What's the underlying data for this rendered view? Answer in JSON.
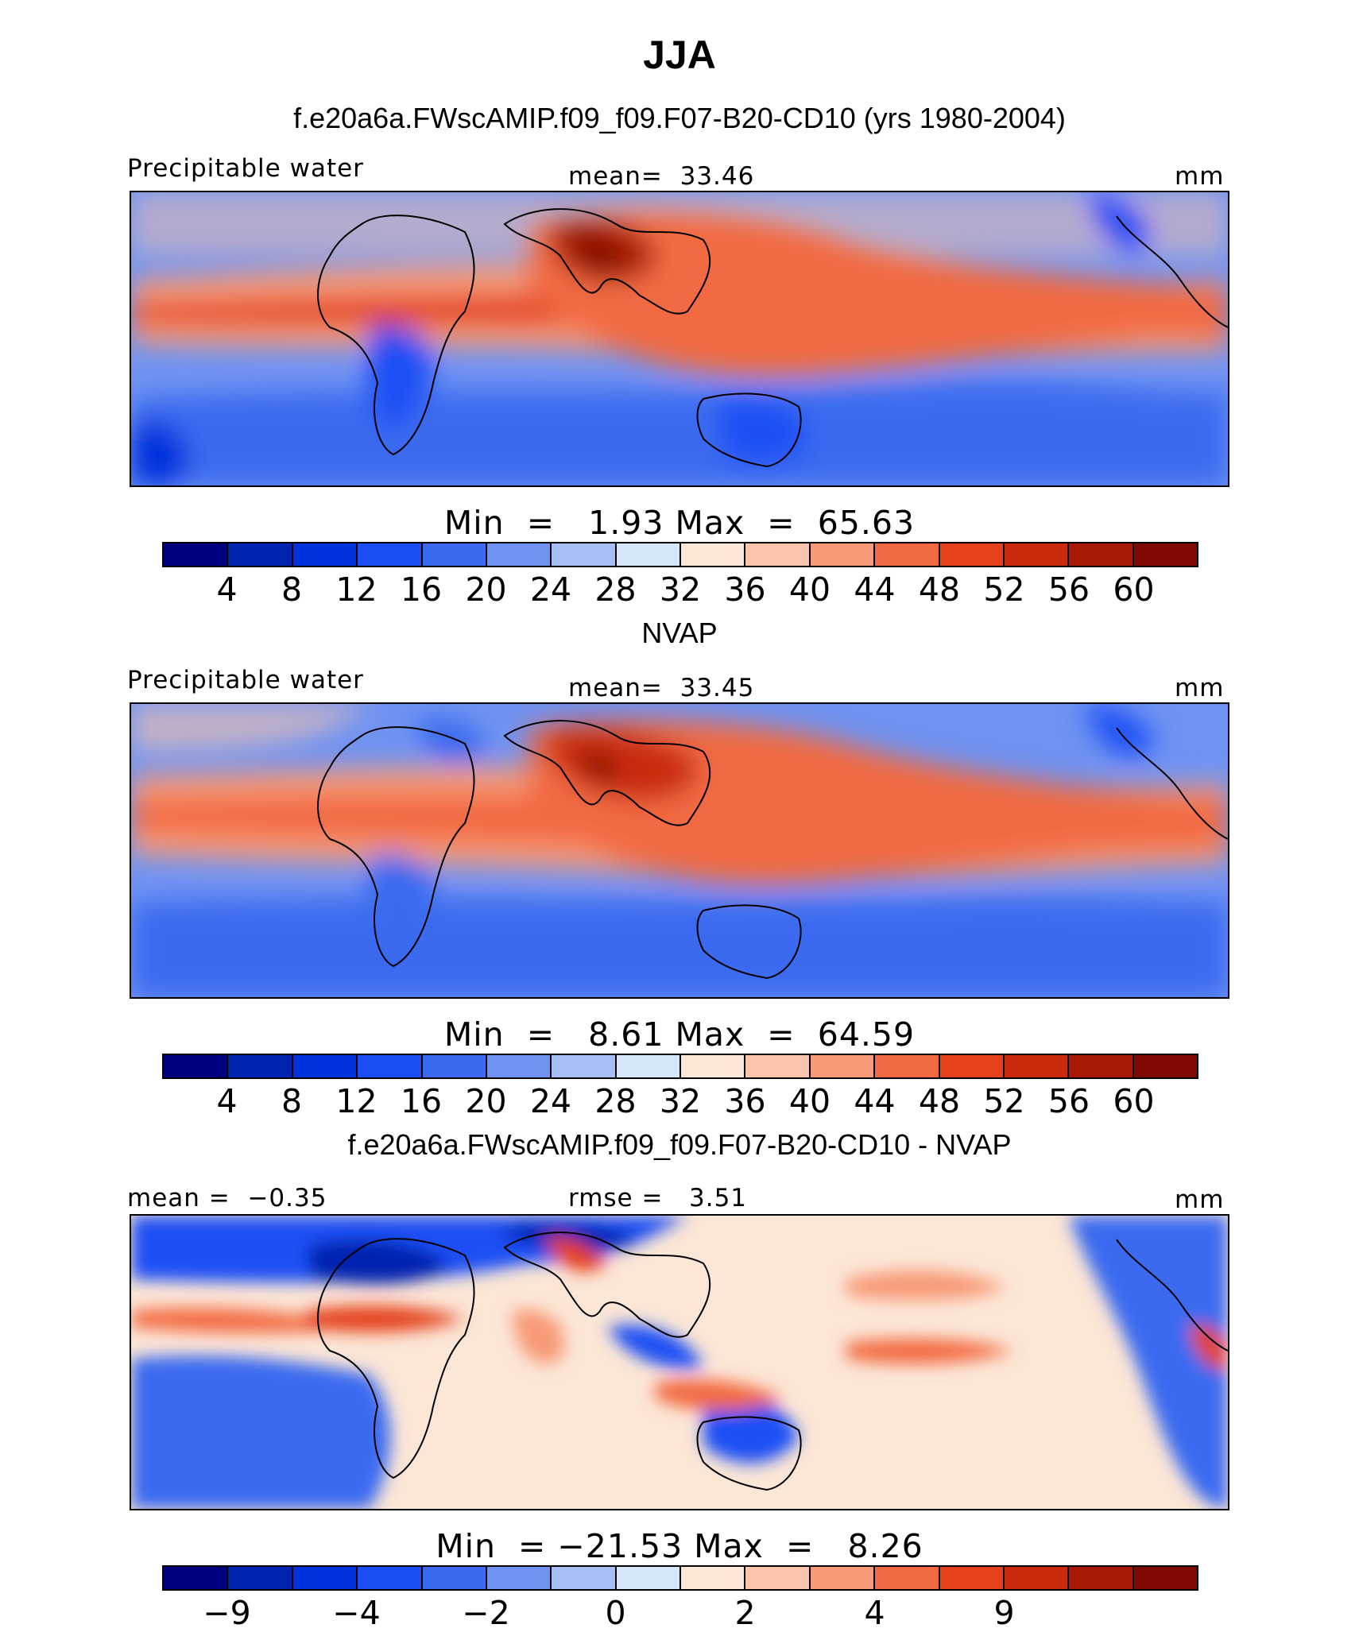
{
  "title": "JJA",
  "chart_data": [
    {
      "type": "heatmap",
      "title": "f.e20a6a.FWscAMIP.f09_f09.F07-B20-CD10 (yrs 1980-2004)",
      "left_label": "Precipitable water",
      "center_label": "mean=  33.46",
      "units": "mm",
      "minmax": "Min  =   1.93 Max  =  65.63",
      "min": 1.93,
      "max": 65.63,
      "mean": 33.46,
      "colorbar_ticks": [
        "4",
        "8",
        "12",
        "16",
        "20",
        "24",
        "28",
        "32",
        "36",
        "40",
        "44",
        "48",
        "52",
        "56",
        "60"
      ]
    },
    {
      "type": "heatmap",
      "title": "NVAP",
      "left_label": "Precipitable water",
      "center_label": "mean=  33.45",
      "units": "mm",
      "minmax": "Min  =   8.61 Max  =  64.59",
      "min": 8.61,
      "max": 64.59,
      "mean": 33.45,
      "colorbar_ticks": [
        "4",
        "8",
        "12",
        "16",
        "20",
        "24",
        "28",
        "32",
        "36",
        "40",
        "44",
        "48",
        "52",
        "56",
        "60"
      ]
    },
    {
      "type": "heatmap",
      "title": "f.e20a6a.FWscAMIP.f09_f09.F07-B20-CD10 - NVAP",
      "left_label": "mean =  −0.35",
      "center_label": "rmse =   3.51",
      "units": "mm",
      "minmax": "Min  = −21.53 Max  =   8.26",
      "min": -21.53,
      "max": 8.26,
      "mean": -0.35,
      "rmse": 3.51,
      "colorbar_ticks": [
        "−9",
        "−4",
        "−2",
        "0",
        "2",
        "4",
        "9"
      ]
    }
  ],
  "colors": [
    "#00007f",
    "#0022b0",
    "#0033dd",
    "#1a4ff5",
    "#3a6af0",
    "#6f93f2",
    "#a6c0f5",
    "#d6e6fa",
    "#fce6d6",
    "#fac4aa",
    "#f79a77",
    "#f26a42",
    "#e4421a",
    "#c92a0c",
    "#a81a05",
    "#7e0a02"
  ]
}
